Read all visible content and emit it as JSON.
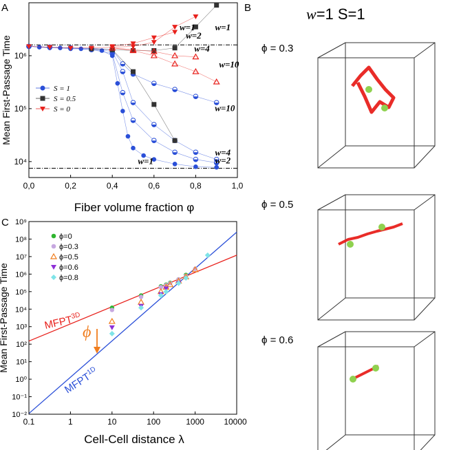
{
  "panel_labels": {
    "a": "A",
    "b": "B",
    "c": "C"
  },
  "colors": {
    "blue": "#2a4fd8",
    "black": "#333333",
    "red": "#e8211c"
  },
  "chart_data": [
    {
      "type": "scatter",
      "panel": "A",
      "xlabel": "Fiber volume fraction φ",
      "ylabel": "Mean First-Passage Time",
      "xlim": [
        0,
        1
      ],
      "ylim": [
        5000,
        10000000
      ],
      "y_scale": "log",
      "xticks": [
        "0,0",
        "0,2",
        "0,4",
        "0,6",
        "0,8",
        "1,0"
      ],
      "yticks": [
        "10⁴",
        "10⁵",
        "10⁶"
      ],
      "hlines": [
        1600000,
        7500
      ],
      "legend": {
        "position": "middle-left",
        "entries": [
          {
            "label": "S = 1",
            "color": "#2a4fd8",
            "marker": "circle"
          },
          {
            "label": "S = 0.5",
            "color": "#333333",
            "marker": "square"
          },
          {
            "label": "S = 0",
            "color": "#e8211c",
            "marker": "triangle-down"
          }
        ]
      },
      "series": [
        {
          "S": "1",
          "w": "1",
          "marker": "circle",
          "x": [
            0,
            0.05,
            0.1,
            0.15,
            0.2,
            0.25,
            0.3,
            0.35,
            0.4,
            0.425,
            0.45,
            0.475,
            0.5,
            0.55,
            0.6,
            0.7,
            0.8,
            0.9
          ],
          "y": [
            1500000,
            1450000,
            1400000,
            1400000,
            1350000,
            1350000,
            1300000,
            1250000,
            1000000,
            300000,
            90000,
            30000,
            18000,
            13000,
            11000,
            9000,
            8000,
            7800
          ]
        },
        {
          "S": "1",
          "w": "2",
          "marker": "half-circle",
          "x": [
            0,
            0.1,
            0.2,
            0.3,
            0.4,
            0.45,
            0.5,
            0.6,
            0.7,
            0.8,
            0.9
          ],
          "y": [
            1500000,
            1450000,
            1400000,
            1300000,
            1100000,
            200000,
            60000,
            25000,
            15000,
            11000,
            9500
          ]
        },
        {
          "S": "1",
          "w": "4",
          "marker": "half-circle",
          "x": [
            0,
            0.1,
            0.2,
            0.3,
            0.4,
            0.45,
            0.5,
            0.6,
            0.7,
            0.8,
            0.9
          ],
          "y": [
            1500000,
            1450000,
            1400000,
            1350000,
            1200000,
            500000,
            130000,
            50000,
            25000,
            15000,
            11000
          ]
        },
        {
          "S": "1",
          "w": "10",
          "marker": "half-circle",
          "x": [
            0,
            0.1,
            0.2,
            0.3,
            0.4,
            0.45,
            0.5,
            0.6,
            0.7,
            0.8,
            0.9
          ],
          "y": [
            1500000,
            1450000,
            1400000,
            1380000,
            1300000,
            700000,
            450000,
            300000,
            230000,
            170000,
            130000
          ]
        },
        {
          "S": "0.5",
          "w": "1",
          "marker": "square",
          "x": [
            0.3,
            0.4,
            0.5,
            0.6,
            0.7,
            0.8,
            0.9
          ],
          "y": [
            1350000,
            1300000,
            1250000,
            1250000,
            1400000,
            3500000,
            9000000
          ]
        },
        {
          "S": "0.5",
          "w": "mixed",
          "marker": "square",
          "x": [
            0.4,
            0.5,
            0.6,
            0.7
          ],
          "y": [
            1300000,
            500000,
            120000,
            25000
          ]
        },
        {
          "S": "0",
          "w": "1",
          "marker": "triangle-down",
          "x": [
            0,
            0.1,
            0.2,
            0.3,
            0.4,
            0.5,
            0.6,
            0.7,
            0.8
          ],
          "y": [
            1500000,
            1450000,
            1400000,
            1400000,
            1450000,
            1500000,
            1800000,
            3500000,
            5500000
          ]
        },
        {
          "S": "0",
          "w": "2",
          "marker": "triangle-down",
          "x": [
            0.4,
            0.5,
            0.6,
            0.7
          ],
          "y": [
            1500000,
            1700000,
            2200000,
            2800000
          ]
        },
        {
          "S": "0",
          "w": "4",
          "marker": "triangle-up",
          "x": [
            0.4,
            0.5,
            0.6,
            0.7,
            0.8
          ],
          "y": [
            1400000,
            1300000,
            1200000,
            1000000,
            950000
          ]
        },
        {
          "S": "0",
          "w": "10",
          "marker": "triangle-up",
          "x": [
            0.4,
            0.5,
            0.6,
            0.7,
            0.8,
            0.9
          ],
          "y": [
            1400000,
            1250000,
            1000000,
            700000,
            500000,
            320000
          ]
        }
      ],
      "annotations": [
        {
          "text": "w=1",
          "x": 0.76,
          "y": 3000000
        },
        {
          "text": "w=1",
          "x": 0.93,
          "y": 3000000
        },
        {
          "text": "w=2",
          "x": 0.79,
          "y": 2100000
        },
        {
          "text": "w=4",
          "x": 0.83,
          "y": 1200000
        },
        {
          "text": "w=10",
          "x": 0.96,
          "y": 600000
        },
        {
          "text": "w=10",
          "x": 0.94,
          "y": 90000
        },
        {
          "text": "w=4",
          "x": 0.93,
          "y": 13000
        },
        {
          "text": "w=2",
          "x": 0.93,
          "y": 9200
        },
        {
          "text": "w=1",
          "x": 0.56,
          "y": 9000
        }
      ]
    },
    {
      "type": "scatter",
      "panel": "C",
      "xlabel": "Cell-Cell distance λ",
      "ylabel": "Mean First-Passage Time",
      "x_scale": "log",
      "y_scale": "log",
      "xlim": [
        0.1,
        10000
      ],
      "ylim": [
        0.01,
        1000000000
      ],
      "xticks": [
        "0.1",
        "1",
        "10",
        "100",
        "1000",
        "10000"
      ],
      "yticks": [
        "10⁻²",
        "10⁻¹",
        "10⁰",
        "10¹",
        "10²",
        "10³",
        "10⁴",
        "10⁵",
        "10⁶",
        "10⁷",
        "10⁸",
        "10⁹"
      ],
      "legend": {
        "position": "top-left",
        "entries": [
          {
            "label": "ϕ=0",
            "color": "#2fb52f",
            "marker": "circle"
          },
          {
            "label": "ϕ=0.3",
            "color": "#c7a8e0",
            "marker": "circle"
          },
          {
            "label": "ϕ=0.5",
            "color": "#f07d1e",
            "marker": "triangle-up"
          },
          {
            "label": "ϕ=0.6",
            "color": "#8e2fd6",
            "marker": "triangle-down"
          },
          {
            "label": "ϕ=0.8",
            "color": "#7fe4e8",
            "marker": "diamond"
          }
        ]
      },
      "series": [
        {
          "name": "ϕ=0",
          "x": [
            10,
            50,
            150,
            200,
            250,
            400,
            600
          ],
          "y": [
            12000,
            60000,
            200000,
            250000,
            320000,
            500000,
            900000
          ]
        },
        {
          "name": "ϕ=0.3",
          "x": [
            10,
            50,
            150,
            200,
            250,
            400,
            600,
            1000
          ],
          "y": [
            9000,
            50000,
            180000,
            230000,
            300000,
            500000,
            800000,
            2000000
          ]
        },
        {
          "name": "ϕ=0.5",
          "x": [
            10,
            50,
            150,
            200,
            250,
            400,
            600,
            1000
          ],
          "y": [
            2000,
            25000,
            100000,
            180000,
            250000,
            400000,
            700000,
            1800000
          ]
        },
        {
          "name": "ϕ=0.6",
          "x": [
            10,
            50,
            150,
            200,
            400
          ],
          "y": [
            900,
            15000,
            70000,
            150000,
            300000
          ]
        },
        {
          "name": "ϕ=0.8",
          "x": [
            10,
            50,
            150,
            200,
            400,
            600,
            2000
          ],
          "y": [
            400,
            12000,
            60000,
            100000,
            300000,
            600000,
            12000000
          ]
        }
      ],
      "lines": [
        {
          "label": "MFPT",
          "superscript": "3D",
          "color": "#e8211c",
          "x": [
            0.1,
            10000
          ],
          "y": [
            150,
            12000000
          ]
        },
        {
          "label": "MFPT",
          "superscript": "1D",
          "color": "#2a4fd8",
          "x": [
            0.1,
            10000
          ],
          "y": [
            0.011,
            250000000
          ]
        }
      ],
      "arrow_annotation": {
        "text": "ϕ",
        "direction": "down",
        "color": "#f07d1e"
      }
    }
  ],
  "panel_b": {
    "title_w": "w",
    "title_rest": "=1  S=1",
    "boxes": [
      {
        "label": "ϕ = 0.3"
      },
      {
        "label": "ϕ = 0.5"
      },
      {
        "label": "ϕ = 0.6"
      }
    ]
  }
}
